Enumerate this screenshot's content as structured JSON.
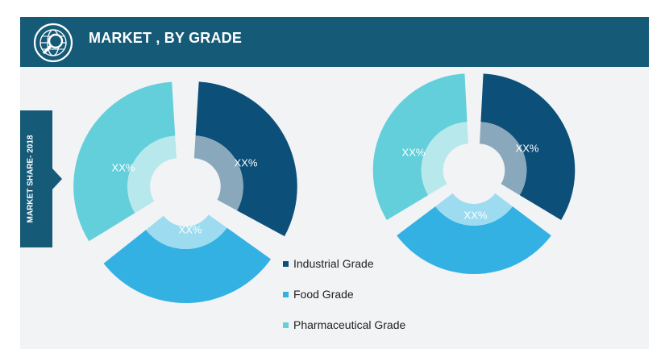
{
  "header": {
    "title": "MARKET , BY GRADE"
  },
  "side_label": "MARKET SHARE- 2018",
  "icons": {
    "header_logo": "globe-magnifier-icon"
  },
  "colors": {
    "header_bg": "#155a77",
    "industrial": "#0c4f79",
    "food": "#33b1e3",
    "pharmaceutical": "#63cfdb",
    "inner_industrial": "#8aa8bb",
    "inner_food": "#9ddcf0",
    "inner_pharmaceutical": "#b7e8ec"
  },
  "chart_data": [
    {
      "type": "pie",
      "style": "donut",
      "series": [
        {
          "name": "Industrial Grade",
          "label": "XX%"
        },
        {
          "name": "Food Grade",
          "label": "XX%"
        },
        {
          "name": "Pharmaceutical Grade",
          "label": "XX%"
        }
      ]
    },
    {
      "type": "pie",
      "style": "donut",
      "series": [
        {
          "name": "Industrial Grade",
          "label": "XX%"
        },
        {
          "name": "Food Grade",
          "label": "XX%"
        },
        {
          "name": "Pharmaceutical Grade",
          "label": "XX%"
        }
      ]
    }
  ],
  "legend": {
    "items": [
      {
        "label": "Industrial Grade",
        "color": "#0c4f79"
      },
      {
        "label": "Food Grade",
        "color": "#33b1e3"
      },
      {
        "label": "Pharmaceutical Grade",
        "color": "#63cfdb"
      }
    ]
  }
}
